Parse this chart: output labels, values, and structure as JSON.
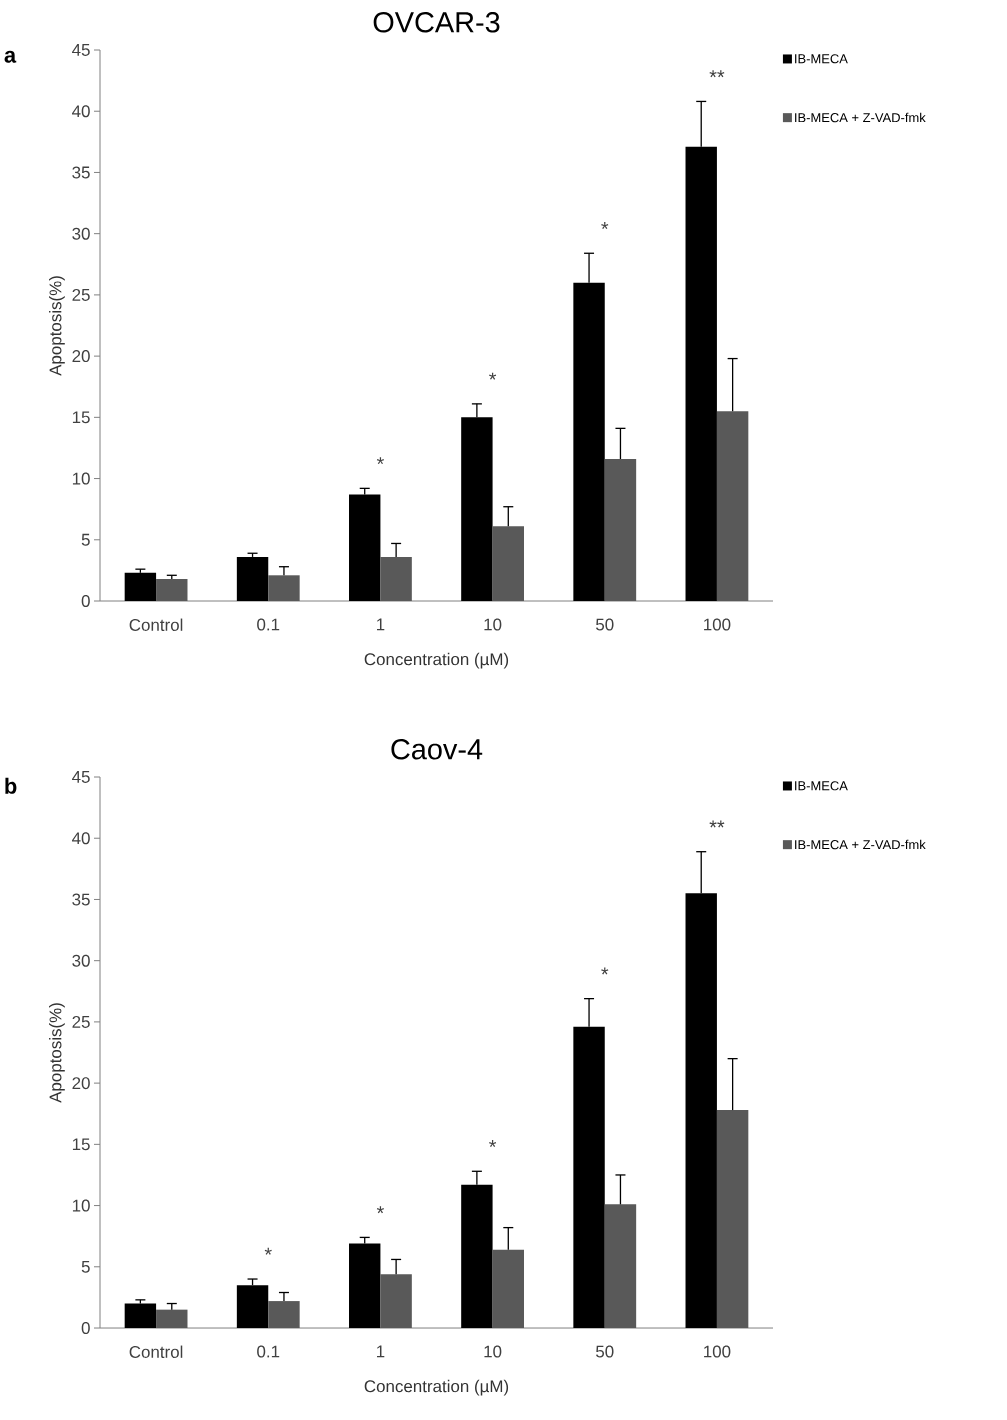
{
  "chart_data": [
    {
      "type": "bar",
      "title": "OVCAR-3",
      "xlabel": "Concentration (µM)",
      "ylabel": "Apoptosis(%)",
      "categories": [
        "Control",
        "0.1",
        "1",
        "10",
        "50",
        "100"
      ],
      "series": [
        {
          "name": "IB-MECA",
          "color": "#000000",
          "values": [
            2.3,
            3.6,
            8.7,
            15.0,
            26.0,
            37.1
          ],
          "errors": [
            [
              2.3,
              2.6
            ],
            [
              3.6,
              3.9
            ],
            [
              8.7,
              9.2
            ],
            [
              15.0,
              16.1
            ],
            [
              26.0,
              28.4
            ],
            [
              37.1,
              40.8
            ]
          ]
        },
        {
          "name": "IB-MECA + Z-VAD-fmk",
          "color": "#595959",
          "values": [
            1.8,
            2.1,
            3.6,
            6.1,
            11.6,
            15.5
          ],
          "errors": [
            [
              1.8,
              2.1
            ],
            [
              2.1,
              2.8
            ],
            [
              3.6,
              4.7
            ],
            [
              6.1,
              7.7
            ],
            [
              11.6,
              14.1
            ],
            [
              15.5,
              19.8
            ]
          ]
        }
      ],
      "ylim": [
        0,
        45
      ],
      "yticks": [
        0,
        5,
        10,
        15,
        20,
        25,
        30,
        35,
        40,
        45
      ],
      "legend": "top right",
      "annotations": [
        "a",
        "*",
        "*",
        "*",
        "**"
      ]
    },
    {
      "type": "bar",
      "title": "Caov-4",
      "xlabel": "Concentration (µM)",
      "ylabel": "Apoptosis(%)",
      "categories": [
        "Control",
        "0.1",
        "1",
        "10",
        "50",
        "100"
      ],
      "series": [
        {
          "name": "IB-MECA",
          "color": "#000000",
          "values": [
            2.0,
            3.5,
            6.9,
            11.7,
            24.6,
            35.5
          ],
          "errors": [
            [
              2.0,
              2.3
            ],
            [
              3.5,
              4.0
            ],
            [
              6.9,
              7.4
            ],
            [
              11.7,
              12.8
            ],
            [
              24.6,
              26.9
            ],
            [
              35.5,
              38.9
            ]
          ]
        },
        {
          "name": "IB-MECA + Z-VAD-fmk",
          "color": "#595959",
          "values": [
            1.5,
            2.2,
            4.4,
            6.4,
            10.1,
            17.8
          ],
          "errors": [
            [
              1.5,
              2.0
            ],
            [
              2.2,
              2.9
            ],
            [
              4.4,
              5.6
            ],
            [
              6.4,
              8.2
            ],
            [
              10.1,
              12.5
            ],
            [
              17.8,
              22.0
            ]
          ]
        }
      ],
      "ylim": [
        0,
        45
      ],
      "yticks": [
        0,
        5,
        10,
        15,
        20,
        25,
        30,
        35,
        40,
        45
      ],
      "legend": "top right",
      "annotations": [
        "b",
        "*",
        "*",
        "*",
        "*",
        "**"
      ]
    }
  ]
}
